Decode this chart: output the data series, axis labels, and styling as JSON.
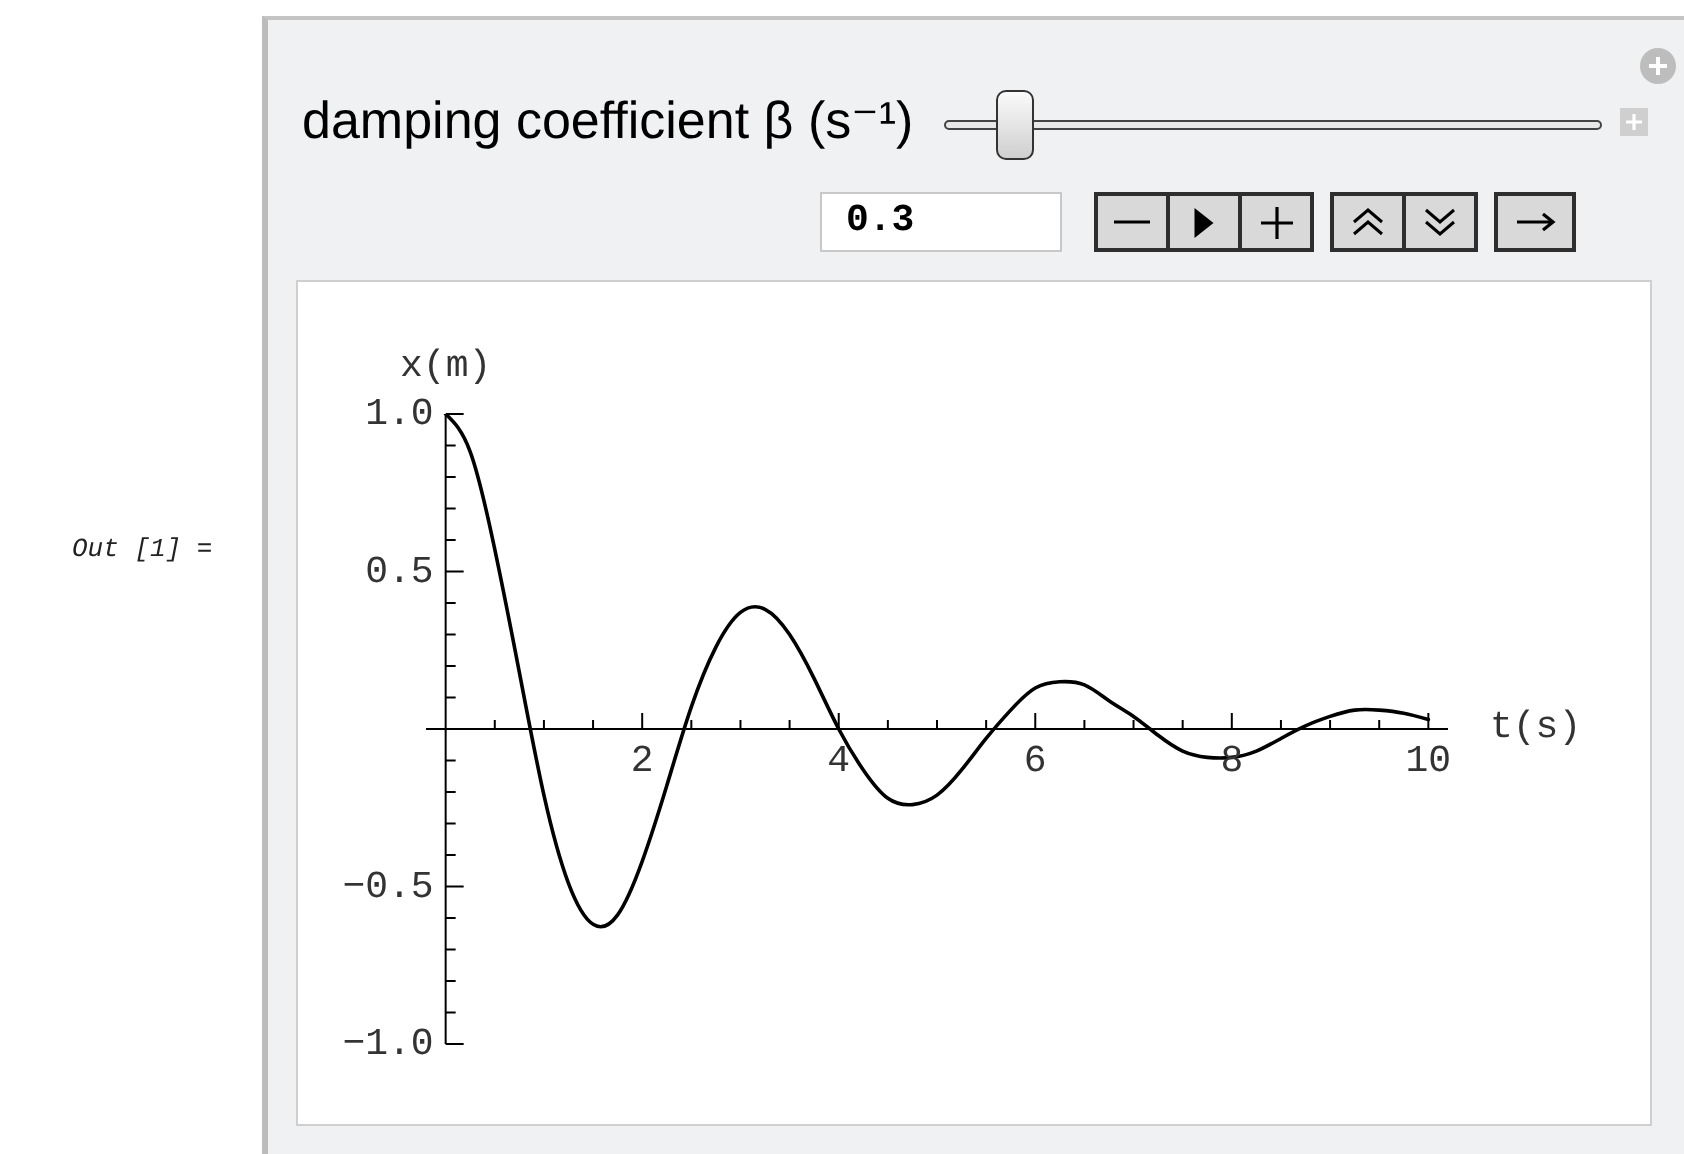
{
  "chart_data": {
    "type": "line",
    "title": "damping coefficient β (s⁻¹)",
    "xlabel": "t(s)",
    "ylabel": "x(m)",
    "annotations": [
      "Out [1] =",
      "0.3"
    ],
    "x": [
      0,
      0.25,
      0.5,
      0.75,
      1,
      1.25,
      1.5,
      1.75,
      2,
      2.25,
      2.5,
      2.75,
      3,
      3.25,
      3.5,
      3.75,
      4,
      4.25,
      4.5,
      4.75,
      5,
      5.25,
      5.5,
      5.75,
      6,
      6.25,
      6.5,
      6.75,
      7,
      7.25,
      7.5,
      7.75,
      8,
      8.25,
      8.5,
      8.75,
      9,
      9.25,
      9.5,
      9.75,
      10
    ],
    "series": [
      {
        "color": "#000000",
        "values": [
          1.0,
          0.88,
          0.57,
          0.18,
          -0.21,
          -0.49,
          -0.62,
          -0.59,
          -0.42,
          -0.18,
          0.07,
          0.26,
          0.37,
          0.38,
          0.3,
          0.16,
          0.0,
          -0.13,
          -0.22,
          -0.24,
          -0.21,
          -0.13,
          -0.03,
          0.06,
          0.13,
          0.15,
          0.14,
          0.09,
          0.04,
          -0.02,
          -0.07,
          -0.09,
          -0.09,
          -0.07,
          -0.03,
          0.01,
          0.04,
          0.06,
          0.06,
          0.05,
          0.03
        ]
      }
    ],
    "xlim": [
      -0.2,
      10.2
    ],
    "xticks": [
      {
        "value": 0.5,
        "label": null
      },
      {
        "value": 1,
        "label": null
      },
      {
        "value": 1.5,
        "label": null
      },
      2,
      {
        "value": 2.5,
        "label": null
      },
      {
        "value": 3,
        "label": null
      },
      {
        "value": 3.5,
        "label": null
      },
      4,
      {
        "value": 4.5,
        "label": null
      },
      {
        "value": 5,
        "label": null
      },
      {
        "value": 5.5,
        "label": null
      },
      6,
      {
        "value": 6.5,
        "label": null
      },
      {
        "value": 7,
        "label": null
      },
      {
        "value": 7.5,
        "label": null
      },
      8,
      {
        "value": 8.5,
        "label": null
      },
      {
        "value": 9,
        "label": null
      },
      {
        "value": 9.5,
        "label": null
      },
      10
    ],
    "ylim": [
      -1,
      1
    ],
    "yticks": [
      {
        "value": -1,
        "label": "−1.0"
      },
      {
        "value": -0.9,
        "label": null
      },
      {
        "value": -0.8,
        "label": null
      },
      {
        "value": -0.7,
        "label": null
      },
      {
        "value": -0.6,
        "label": null
      },
      {
        "value": -0.5,
        "label": "−0.5"
      },
      {
        "value": -0.4,
        "label": null
      },
      {
        "value": -0.3,
        "label": null
      },
      {
        "value": -0.2,
        "label": null
      },
      {
        "value": -0.1,
        "label": null
      },
      {
        "value": 0.1,
        "label": null
      },
      {
        "value": 0.2,
        "label": null
      },
      {
        "value": 0.3,
        "label": null
      },
      {
        "value": 0.4,
        "label": null
      },
      0.5,
      {
        "value": 0.6,
        "label": null
      },
      {
        "value": 0.7,
        "label": null
      },
      {
        "value": 0.8,
        "label": null
      },
      {
        "value": 0.9,
        "label": null
      },
      {
        "value": 1,
        "label": "1.0"
      }
    ],
    "marker": "none",
    "line_style": "solid"
  }
}
